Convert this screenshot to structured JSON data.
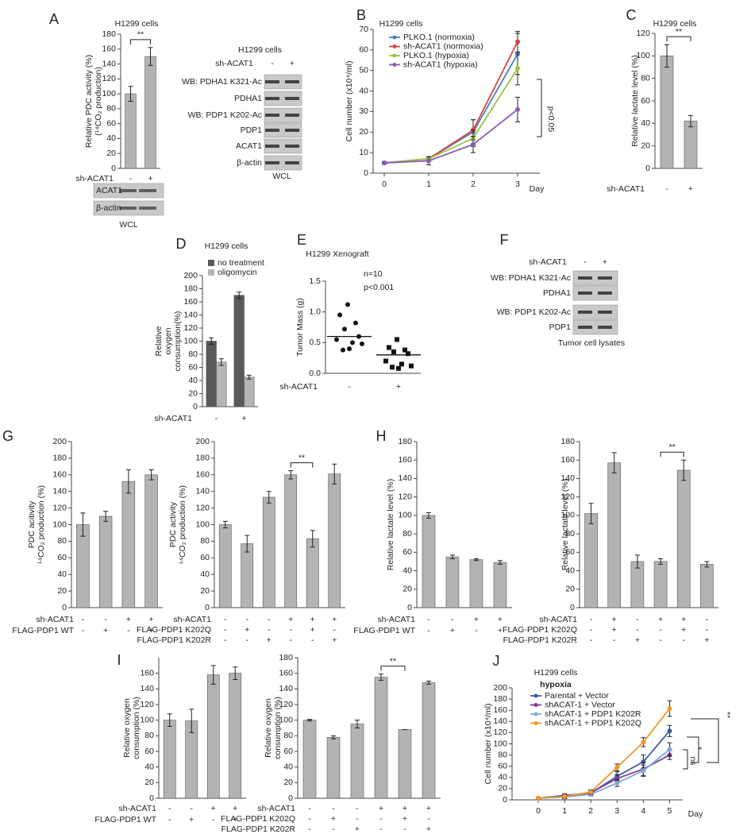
{
  "chart_data": [
    {
      "type": "bar",
      "panel": "A",
      "title": "H1299 cells",
      "ylabel": [
        "Relative PDC activity (%)",
        "(¹⁴CO₂ production)"
      ],
      "values": [
        100,
        150
      ],
      "errors": [
        10,
        12
      ],
      "color": "#b3b3b3",
      "ylim": [
        0,
        180
      ],
      "yticks": [
        0,
        20,
        40,
        60,
        80,
        100,
        120,
        140,
        160,
        180
      ],
      "rows": [
        {
          "label": "sh-ACAT1",
          "values": [
            "-",
            "+"
          ]
        }
      ],
      "significance": [
        {
          "between": [
            0,
            1
          ],
          "label": "**"
        }
      ]
    },
    {
      "type": "line",
      "panel": "B",
      "title": "H1299 cells",
      "ylabel": [
        "Cell number (x10⁴/ml)"
      ],
      "xlabel": "Day",
      "x": [
        0,
        1,
        2,
        3
      ],
      "xlim": [
        -0.25,
        3.5
      ],
      "xticks": [
        0,
        1,
        2,
        3
      ],
      "ylim": [
        0,
        70
      ],
      "yticks": [
        0,
        10,
        20,
        30,
        40,
        50,
        60,
        70
      ],
      "series": [
        {
          "name": "PLKO.1 (normoxia)",
          "color": "#4a7fc1",
          "values": [
            5,
            7,
            20,
            58
          ],
          "errors": [
            0.5,
            1,
            6,
            10
          ]
        },
        {
          "name": "sh-ACAT1 (normoxia)",
          "color": "#d9443a",
          "values": [
            5,
            7,
            21,
            64
          ],
          "errors": [
            0.5,
            1,
            5,
            5
          ]
        },
        {
          "name": "PLKO.1 (hypoxia)",
          "color": "#9bc53d",
          "values": [
            5,
            7,
            17,
            51
          ],
          "errors": [
            0.5,
            1,
            4,
            8
          ]
        },
        {
          "name": "sh-ACAT1 (hypoxia)",
          "color": "#8a5bb5",
          "values": [
            5,
            6,
            14,
            31
          ],
          "errors": [
            0.5,
            2,
            4,
            6
          ]
        }
      ],
      "annotations": [
        "p<0.05"
      ]
    },
    {
      "type": "bar",
      "panel": "C",
      "title": "H1299 cells",
      "ylabel": [
        "Relative lactate level (%)"
      ],
      "values": [
        100,
        42
      ],
      "errors": [
        10,
        5
      ],
      "color": "#b3b3b3",
      "ylim": [
        0,
        120
      ],
      "yticks": [
        0,
        20,
        40,
        60,
        80,
        100,
        120
      ],
      "rows": [
        {
          "label": "sh-ACAT1",
          "values": [
            "-",
            "+"
          ]
        }
      ],
      "significance": [
        {
          "between": [
            0,
            1
          ],
          "label": "**"
        }
      ]
    },
    {
      "type": "bar",
      "panel": "D",
      "title": "H1299 cells",
      "ylabel": [
        "Relative",
        "oxygen",
        "consumption(%)"
      ],
      "series": [
        {
          "name": "no treatment",
          "color": "#5a5a5a",
          "values": [
            100,
            170
          ],
          "errors": [
            5,
            5
          ]
        },
        {
          "name": "oligomycin",
          "color": "#b5b5b5",
          "values": [
            68,
            45
          ],
          "errors": [
            5,
            3
          ]
        }
      ],
      "ylim": [
        0,
        200
      ],
      "yticks": [
        0,
        20,
        40,
        60,
        80,
        100,
        120,
        140,
        160,
        180,
        200
      ],
      "rows": [
        {
          "label": "sh-ACAT1",
          "values": [
            "-",
            "+"
          ]
        }
      ]
    },
    {
      "type": "strip",
      "panel": "E",
      "title": "H1299 Xenograft",
      "ylabel": [
        "Tumor Mass (g)"
      ],
      "series": [
        {
          "values": [
            1.12,
            0.95,
            0.82,
            0.72,
            0.6,
            0.55,
            0.5,
            0.48,
            0.38,
            0.4
          ],
          "color": "#111111"
        },
        {
          "values": [
            0.55,
            0.42,
            0.38,
            0.35,
            0.32,
            0.2,
            0.15,
            0.12,
            0.1,
            0.08
          ],
          "color": "#111111"
        }
      ],
      "means": [
        0.6,
        0.3
      ],
      "ylim": [
        0,
        1.5
      ],
      "yticks": [
        {
          "value": 0,
          "label": "0.0"
        },
        {
          "value": 0.5,
          "label": "0.5"
        },
        {
          "value": 1,
          "label": "1.0"
        },
        {
          "value": 1.5,
          "label": "1.5"
        }
      ],
      "rows": [
        {
          "label": "sh-ACAT1",
          "values": [
            "-",
            "+"
          ]
        }
      ],
      "annotations": [
        "n=10",
        "p<0.001"
      ]
    },
    {
      "type": "bar",
      "panel": "G",
      "ylabel": [
        "PDC acitivity",
        "¹⁴CO₂ production (%)"
      ],
      "values": [
        100,
        110,
        152,
        160
      ],
      "errors": [
        14,
        6,
        14,
        6
      ],
      "color": "#b3b3b3",
      "ylim": [
        0,
        200
      ],
      "yticks": [
        0,
        20,
        40,
        60,
        80,
        100,
        120,
        140,
        160,
        180,
        200
      ],
      "rows": [
        {
          "label": "sh-ACAT1",
          "values": [
            "-",
            "-",
            "+",
            "+"
          ]
        },
        {
          "label": "FLAG-PDP1 WT",
          "values": [
            "-",
            "+",
            "-",
            "+"
          ]
        }
      ]
    },
    {
      "type": "bar",
      "ylabel": [
        "PDC activity",
        "¹⁴CO₂ production (%)"
      ],
      "values": [
        100,
        77,
        133,
        160,
        83,
        161
      ],
      "errors": [
        4,
        10,
        7,
        5,
        10,
        12
      ],
      "color": "#b3b3b3",
      "ylim": [
        0,
        200
      ],
      "yticks": [
        0,
        20,
        40,
        60,
        80,
        100,
        120,
        140,
        160,
        180,
        200
      ],
      "rows": [
        {
          "label": "sh-ACAT1",
          "values": [
            "-",
            "-",
            "-",
            "+",
            "+",
            "+"
          ]
        },
        {
          "label": "FLAG-PDP1 K202Q",
          "values": [
            "-",
            "+",
            "-",
            "-",
            "+",
            "-"
          ]
        },
        {
          "label": "FLAG-PDP1 K202R",
          "values": [
            "-",
            "-",
            "+",
            "-",
            "-",
            "+"
          ]
        }
      ],
      "significance": [
        {
          "between": [
            3,
            4
          ],
          "label": "**"
        }
      ]
    },
    {
      "type": "bar",
      "panel": "H",
      "ylabel": [
        "Relative lactate level (%)"
      ],
      "values": [
        100,
        55,
        52,
        49
      ],
      "errors": [
        3,
        2,
        1,
        2
      ],
      "color": "#b3b3b3",
      "ylim": [
        0,
        180
      ],
      "yticks": [
        0,
        20,
        40,
        60,
        80,
        100,
        120,
        140,
        160,
        180
      ],
      "rows": [
        {
          "label": "sh-ACAT1",
          "values": [
            "-",
            "-",
            "+",
            "+"
          ]
        },
        {
          "label": "FLAG-PDP1 WT",
          "values": [
            "-",
            "+",
            "-",
            "+"
          ]
        }
      ]
    },
    {
      "type": "bar",
      "ylabel": [
        "Relative lactate level (%)"
      ],
      "values": [
        102,
        157,
        50,
        50,
        149,
        47
      ],
      "errors": [
        11,
        11,
        7,
        3,
        11,
        3
      ],
      "color": "#b3b3b3",
      "ylim": [
        0,
        180
      ],
      "yticks": [
        0,
        20,
        40,
        60,
        80,
        100,
        120,
        140,
        160,
        180
      ],
      "rows": [
        {
          "label": "sh-ACAT1",
          "values": [
            "-",
            "+",
            "-",
            "+",
            "+",
            "-"
          ]
        },
        {
          "label": "FLAG-PDP1 K202Q",
          "values": [
            "-",
            "+",
            "-",
            "-",
            "+",
            "-"
          ]
        },
        {
          "label": "FLAG-PDP1 K202R",
          "values": [
            "-",
            "-",
            "+",
            "-",
            "-",
            "+"
          ]
        }
      ],
      "significance": [
        {
          "between": [
            3,
            4
          ],
          "label": "**"
        }
      ]
    },
    {
      "type": "bar",
      "panel": "I",
      "ylabel": [
        "Relative oxygen",
        "consumption (%)"
      ],
      "values": [
        100,
        99,
        158,
        160
      ],
      "errors": [
        8,
        15,
        12,
        8
      ],
      "color": "#b3b3b3",
      "ylim": [
        0,
        180
      ],
      "yticks": [
        0,
        20,
        40,
        60,
        80,
        100,
        120,
        140,
        160
      ],
      "rows": [
        {
          "label": "sh-ACAT1",
          "values": [
            "-",
            "-",
            "+",
            "+"
          ]
        },
        {
          "label": "FLAG-PDP1 WT",
          "values": [
            "-",
            "+",
            "-",
            "+"
          ]
        }
      ]
    },
    {
      "type": "bar",
      "ylabel": [
        "Relative oxygen",
        "consumption (%)"
      ],
      "values": [
        100,
        78,
        95,
        155,
        88,
        148
      ],
      "errors": [
        1,
        2,
        5,
        4,
        0,
        2
      ],
      "color": "#b3b3b3",
      "ylim": [
        0,
        180
      ],
      "yticks": [
        0,
        20,
        40,
        60,
        80,
        100,
        120,
        140,
        160,
        180
      ],
      "rows": [
        {
          "label": "sh-ACAT1",
          "values": [
            "-",
            "-",
            "-",
            "+",
            "+",
            "+"
          ]
        },
        {
          "label": "FLAG-PDP1 K202Q",
          "values": [
            "-",
            "+",
            "-",
            "-",
            "+",
            "-"
          ]
        },
        {
          "label": "FLAG-PDP1 K202R",
          "values": [
            "-",
            "-",
            "+",
            "-",
            "-",
            "+"
          ]
        }
      ],
      "significance": [
        {
          "between": [
            3,
            4
          ],
          "label": "**"
        }
      ]
    },
    {
      "type": "line",
      "panel": "J",
      "title": "H1299 cells",
      "subtitle": "hypoxia",
      "ylabel": [
        "Cell number (x10⁴/ml)"
      ],
      "xlabel": "Day",
      "x": [
        0,
        1,
        2,
        3,
        4,
        5
      ],
      "xlim": [
        -1,
        5.5
      ],
      "xticks": [
        0,
        1,
        2,
        3,
        4,
        5
      ],
      "ylim": [
        0,
        200
      ],
      "yticks": [
        0,
        20,
        40,
        60,
        80,
        100,
        120,
        140,
        160,
        180,
        200
      ],
      "series": [
        {
          "name": "Parental + Vector",
          "color": "#3c5aa6",
          "values": [
            3,
            8,
            12,
            42,
            68,
            123
          ],
          "errors": [
            1,
            3,
            3,
            8,
            12,
            10
          ]
        },
        {
          "name": "shACAT-1 + Vector",
          "color": "#7b3f99",
          "values": [
            3,
            6,
            13,
            38,
            55,
            80
          ],
          "errors": [
            1,
            2,
            3,
            7,
            12,
            8
          ]
        },
        {
          "name": "shACAT-1 + PDP1 K202R",
          "color": "#7fa8d8",
          "values": [
            3,
            5,
            10,
            30,
            52,
            90
          ],
          "errors": [
            1,
            3,
            3,
            6,
            10,
            12
          ]
        },
        {
          "name": "shACAT-1 + PDP1 K202Q",
          "color": "#f0962c",
          "values": [
            3,
            6,
            14,
            58,
            103,
            163
          ],
          "errors": [
            1,
            3,
            4,
            6,
            8,
            14
          ]
        }
      ],
      "annotations": [
        "**",
        "*",
        "ns"
      ]
    }
  ],
  "blots": [
    {
      "rows": [
        "ACAT1",
        "β-actin"
      ],
      "caption": "WCL"
    },
    {
      "title": "H1299 cells",
      "header": "sh-ACAT1",
      "lanes": [
        "-",
        "+"
      ],
      "rows": [
        "WB: PDHA1 K321-Ac",
        "PDHA1",
        "WB: PDP1 K202-Ac",
        "PDP1",
        "ACAT1",
        "β-actin"
      ],
      "caption": "WCL"
    },
    {
      "panel": "F",
      "header": "sh-ACAT1",
      "lanes": [
        "-",
        "+"
      ],
      "rows": [
        "WB: PDHA1 K321-Ac",
        "PDHA1",
        "WB: PDP1 K202-Ac",
        "PDP1"
      ],
      "caption": "Tumor  cell lysates"
    }
  ]
}
